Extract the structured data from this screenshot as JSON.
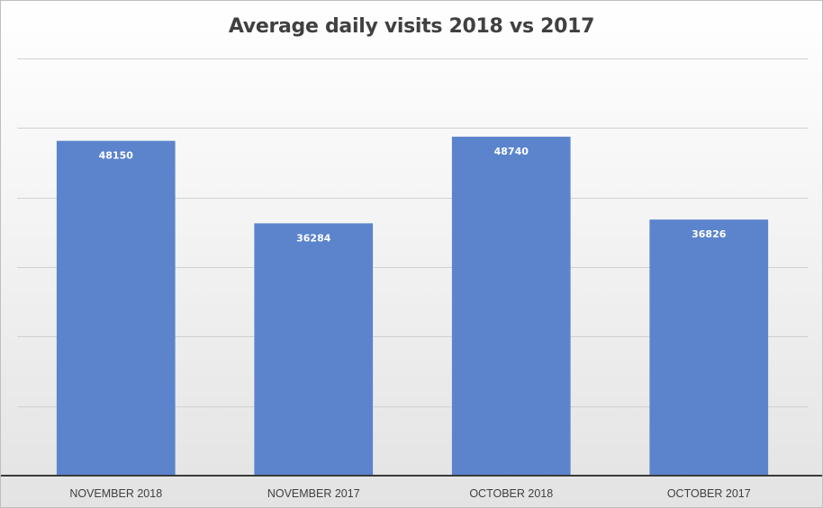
{
  "chart_data": {
    "type": "bar",
    "title": "Average daily visits 2018 vs 2017",
    "categories": [
      "NOVEMBER 2018",
      "NOVEMBER 2017",
      "OCTOBER 2018",
      "OCTOBER 2017"
    ],
    "values": [
      48150,
      36284,
      48740,
      36826
    ],
    "ylim": [
      0,
      60000
    ],
    "y_gridline_step": 10000,
    "y_tick_labels_shown": false,
    "data_labels": "inside-top",
    "grid": true,
    "legend": "none",
    "colors": {
      "bar": "#5b84cc",
      "data_label": "#ffffff",
      "gridline": "#d0d0d0",
      "axis": "#3a3a3a",
      "title": "#404040"
    }
  }
}
